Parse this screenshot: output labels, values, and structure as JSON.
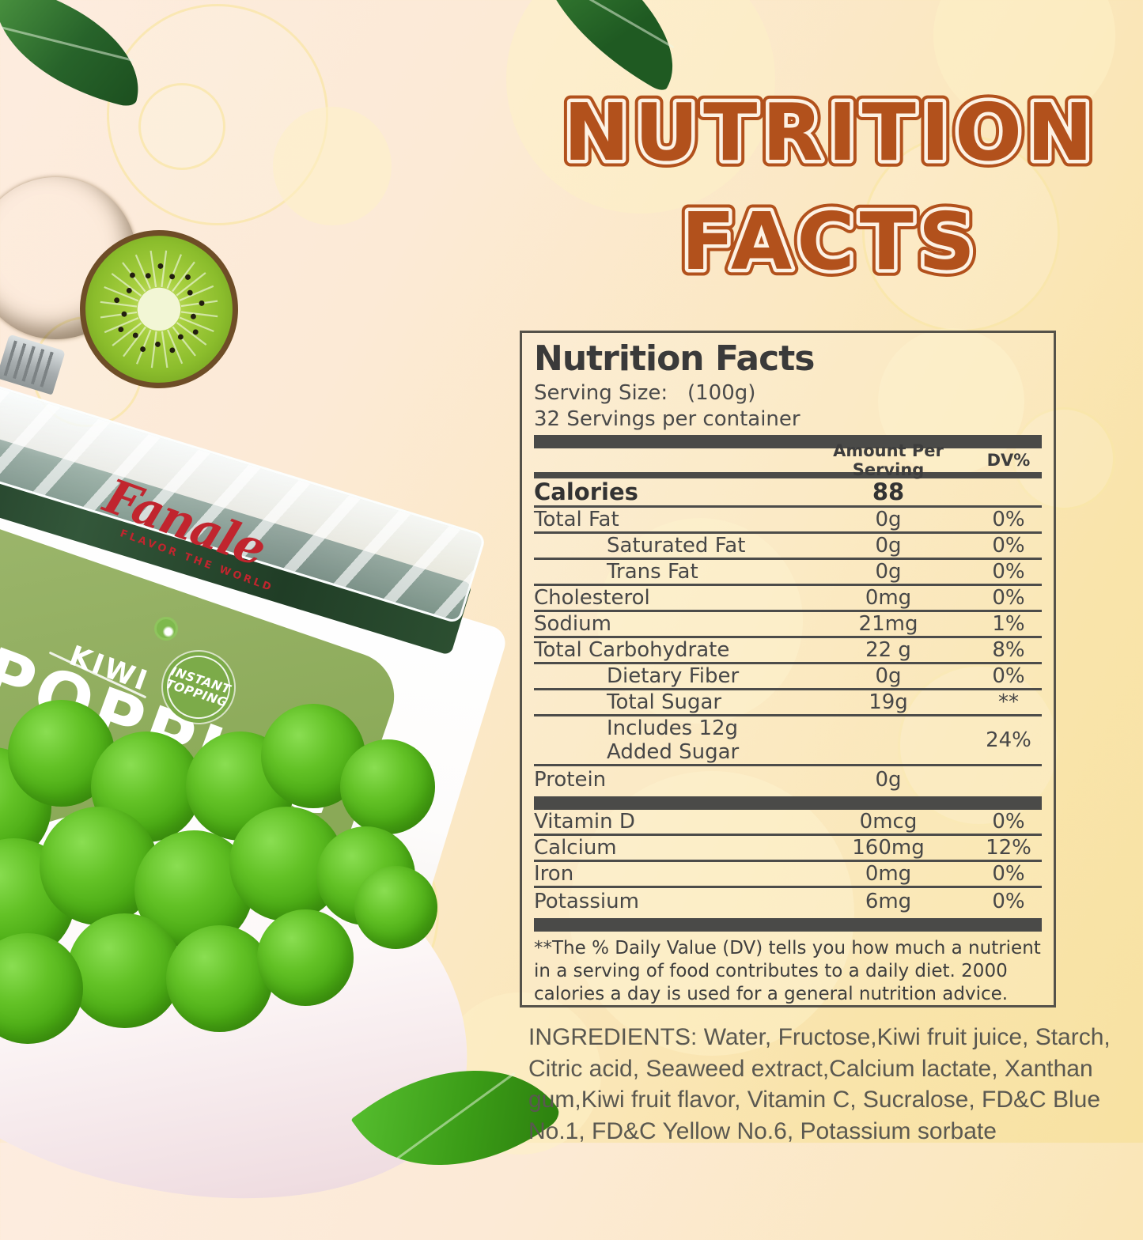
{
  "theme": {
    "title_orange": "#b2511c",
    "title_inline_cream": "#fdf2e4",
    "panel_line_color": "#4a4a48",
    "brand_red": "#c1252e",
    "boba_green": "#55b81c",
    "label_green": "#8aa957"
  },
  "title": {
    "line1": "NUTRITION",
    "line2": "FACTS"
  },
  "panel": {
    "heading": "Nutrition Facts",
    "serving_size_label": "Serving Size:",
    "serving_size_value": "(100g)",
    "servings_per_container": "32 Servings per container",
    "amount_header": "Amount Per Serving",
    "dv_header": "DV%",
    "calories_label": "Calories",
    "calories_value": "88",
    "rows": [
      {
        "label": "Total Fat",
        "indent": 0,
        "amount": "0g",
        "dv": "0%"
      },
      {
        "label": "Saturated Fat",
        "indent": 1,
        "amount": "0g",
        "dv": "0%"
      },
      {
        "label": "Trans Fat",
        "indent": 1,
        "amount": "0g",
        "dv": "0%"
      },
      {
        "label": "Cholesterol",
        "indent": 0,
        "amount": "0mg",
        "dv": "0%"
      },
      {
        "label": "Sodium",
        "indent": 0,
        "amount": "21mg",
        "dv": "1%"
      },
      {
        "label": "Total Carbohydrate",
        "indent": 0,
        "amount": "22 g",
        "dv": "8%"
      },
      {
        "label": "Dietary Fiber",
        "indent": 1,
        "amount": "0g",
        "dv": "0%"
      },
      {
        "label": "Total Sugar",
        "indent": 1,
        "amount": "19g",
        "dv": "**"
      },
      {
        "label": "Includes 12g Added Sugar",
        "indent": 1,
        "amount": "",
        "dv": "24%"
      },
      {
        "label": "Protein",
        "indent": 0,
        "amount": "0g",
        "dv": ""
      }
    ],
    "minerals": [
      {
        "label": "Vitamin D",
        "amount": "0mcg",
        "dv": "0%"
      },
      {
        "label": "Calcium",
        "amount": "160mg",
        "dv": "12%"
      },
      {
        "label": "Iron",
        "amount": "0mg",
        "dv": "0%"
      },
      {
        "label": "Potassium",
        "amount": "6mg",
        "dv": "0%"
      }
    ],
    "footnote": "**The % Daily Value (DV) tells you how much a nutrient in a serving of food contributes to a daily diet. 2000 calories a  day is used for a general nutrition advice."
  },
  "ingredients": "INGREDIENTS: Water, Fructose,Kiwi fruit juice, Starch, Citric acid, Seaweed extract,Calcium lactate, Xanthan gum,Kiwi fruit flavor, Vitamin C, Sucralose, FD&C Blue No.1, FD&C Yellow No.6, Potassium sorbate",
  "product_label": {
    "brand": "Fanale",
    "tagline": "FLAVOR THE WORLD",
    "flavor": "KIWI",
    "product_word": "POPPING",
    "badge_line1": "INSTANT",
    "badge_line2": "TOPPING"
  }
}
